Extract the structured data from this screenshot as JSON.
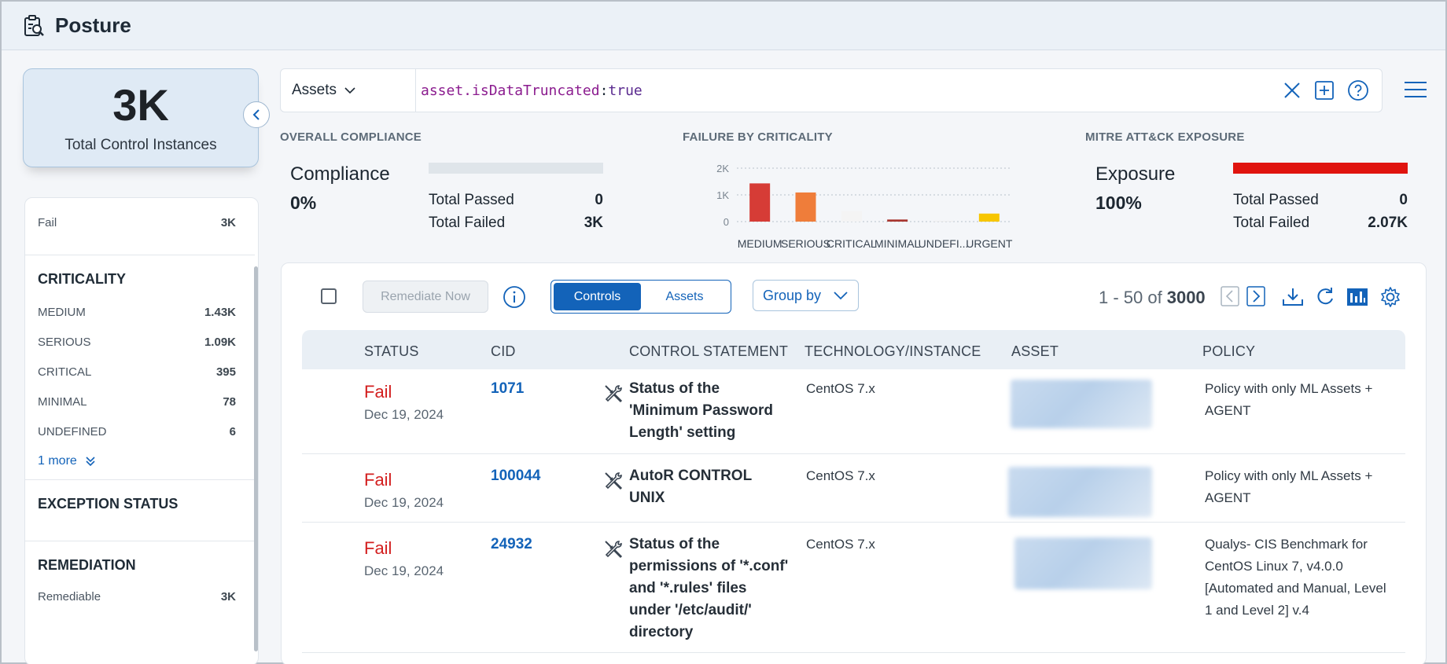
{
  "app": {
    "title": "Posture",
    "icon": "clipboard-search-icon"
  },
  "kpi": {
    "value": "3K",
    "label": "Total Control Instances"
  },
  "facets": {
    "fail": {
      "label": "Fail",
      "count": "3K"
    },
    "criticality": {
      "title": "CRITICALITY",
      "items": [
        {
          "label": "MEDIUM",
          "count": "1.43K"
        },
        {
          "label": "SERIOUS",
          "count": "1.09K"
        },
        {
          "label": "CRITICAL",
          "count": "395"
        },
        {
          "label": "MINIMAL",
          "count": "78"
        },
        {
          "label": "UNDEFINED",
          "count": "6"
        }
      ],
      "more": "1 more"
    },
    "exception_status": {
      "title": "EXCEPTION STATUS"
    },
    "remediation": {
      "title": "REMEDIATION",
      "items": [
        {
          "label": "Remediable",
          "count": "3K"
        }
      ]
    }
  },
  "search": {
    "scope": "Assets",
    "query_key": "asset.isDataTruncated",
    "query_sep": ":",
    "query_value": "true"
  },
  "summary": {
    "compliance": {
      "header": "OVERALL COMPLIANCE",
      "label": "Compliance",
      "value": "0%",
      "progress": 0,
      "passed_label": "Total Passed",
      "passed": "0",
      "failed_label": "Total Failed",
      "failed": "3K"
    },
    "criticality": {
      "header": "FAILURE BY CRITICALITY"
    },
    "mitre": {
      "header": "MITRE ATT&CK EXPOSURE",
      "label": "Exposure",
      "value": "100%",
      "progress": 1.0,
      "bar_color": "#e0140f",
      "passed_label": "Total Passed",
      "passed": "0",
      "failed_label": "Total Failed",
      "failed": "2.07K"
    }
  },
  "chart_data": {
    "type": "bar",
    "categories": [
      "MEDIUM",
      "SERIOUS",
      "CRITICAL",
      "MINIMAL",
      "UNDEFI...",
      "URGENT"
    ],
    "values": [
      1430,
      1090,
      395,
      78,
      6,
      300
    ],
    "colors": [
      "#d63c36",
      "#ef7d3a",
      "#f4f4f4",
      "#a8362f",
      "#eeeeee",
      "#f7c600"
    ],
    "yticks": [
      "2K",
      "1K",
      "0"
    ],
    "ylim": [
      0,
      2000
    ],
    "grid": true
  },
  "toolbar": {
    "remediate_label": "Remediate Now",
    "seg_controls": "Controls",
    "seg_assets": "Assets",
    "groupby_label": "Group by",
    "range": "1 - 50 of",
    "total": "3000"
  },
  "table": {
    "headers": [
      "STATUS",
      "CID",
      "CONTROL STATEMENT",
      "TECHNOLOGY/INSTANCE",
      "ASSET",
      "POLICY"
    ],
    "rows": [
      {
        "status": "Fail",
        "date": "Dec 19, 2024",
        "cid": "1071",
        "statement": "Status of the 'Minimum Password Length' setting",
        "tech": "CentOS 7.x",
        "policy": "Policy with only ML Assets + AGENT"
      },
      {
        "status": "Fail",
        "date": "Dec 19, 2024",
        "cid": "100044",
        "statement": "AutoR CONTROL UNIX",
        "tech": "CentOS 7.x",
        "policy": "Policy with only ML Assets + AGENT"
      },
      {
        "status": "Fail",
        "date": "Dec 19, 2024",
        "cid": "24932",
        "statement": "Status of the permissions of '*.conf' and '*.rules' files under '/etc/audit/' directory",
        "tech": "CentOS 7.x",
        "policy": "Qualys- CIS Benchmark for CentOS Linux 7, v4.0.0 [Automated and Manual, Level 1 and Level 2] v.4"
      }
    ]
  }
}
